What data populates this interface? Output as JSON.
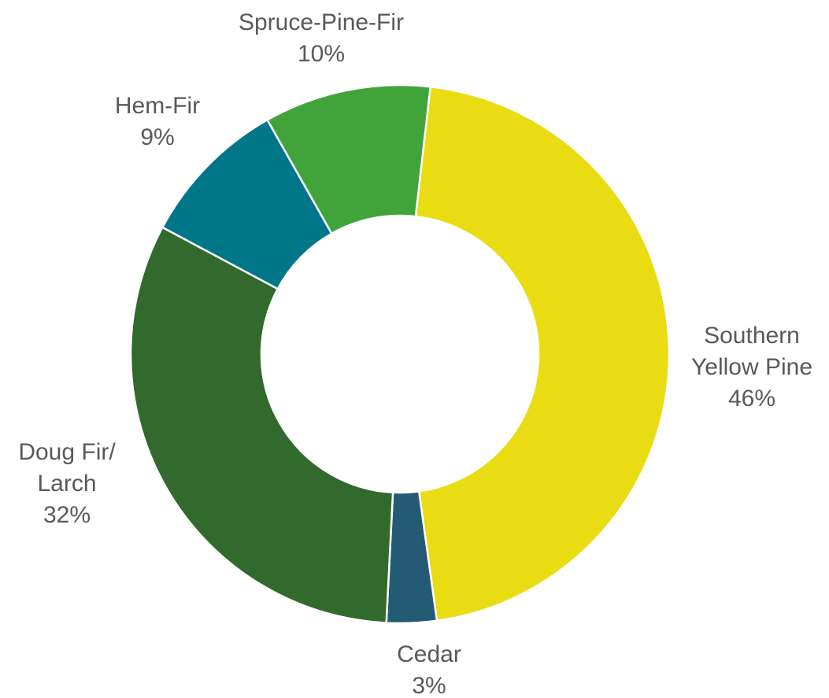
{
  "chart_data": {
    "type": "donut",
    "categories": [
      [
        "Southern",
        "Yellow Pine"
      ],
      [
        "Cedar"
      ],
      [
        "Doug Fir/",
        "Larch"
      ],
      [
        "Hem-Fir"
      ],
      [
        "Spruce-Pine-Fir"
      ]
    ],
    "values": [
      46,
      3,
      32,
      9,
      10
    ],
    "value_labels": [
      "46%",
      "3%",
      "32%",
      "9%",
      "10%"
    ],
    "colors": [
      "#e9dc12",
      "#255a75",
      "#316a2c",
      "#007788",
      "#41a43b"
    ]
  }
}
